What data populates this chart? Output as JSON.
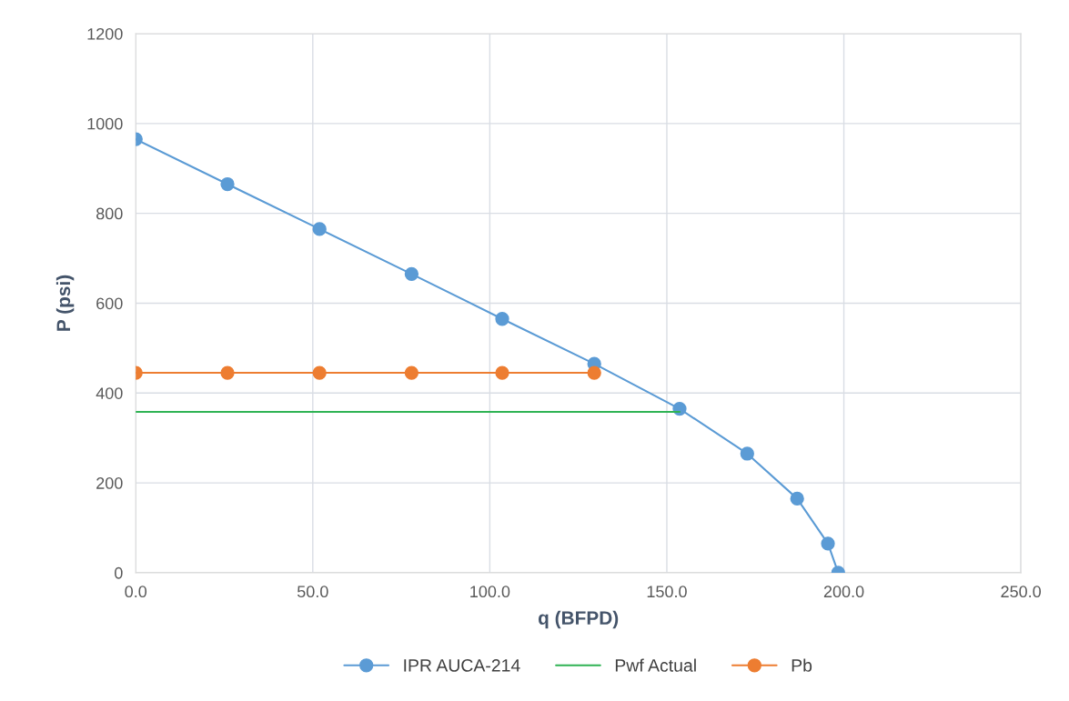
{
  "chart_data": {
    "type": "line",
    "xlabel": "q (BFPD)",
    "ylabel": "P (psi)",
    "xlim": [
      0,
      250
    ],
    "xticks": [
      {
        "value": 0,
        "label": "0.0"
      },
      {
        "value": 50,
        "label": "50.0"
      },
      {
        "value": 100,
        "label": "100.0"
      },
      {
        "value": 150,
        "label": "150.0"
      },
      {
        "value": 200,
        "label": "200.0"
      },
      {
        "value": 250,
        "label": "250.0"
      }
    ],
    "ylim": [
      0,
      1200
    ],
    "yticks": [
      0,
      200,
      400,
      600,
      800,
      1000,
      1200
    ],
    "grid": true,
    "legend": "bottom",
    "series": [
      {
        "name": "IPR AUCA-214",
        "color": "#5b9bd5",
        "marker": "circle",
        "x": [
          0,
          25.9,
          51.9,
          77.9,
          103.5,
          129.5,
          153.6,
          172.7,
          186.8,
          195.5,
          198.4
        ],
        "values": [
          965,
          865,
          765,
          665,
          565,
          465,
          365,
          265,
          165,
          65,
          0
        ]
      },
      {
        "name": "Pwf Actual",
        "color": "#2fb354",
        "marker": "none",
        "x": [
          0,
          153.6
        ],
        "values": [
          358,
          358
        ]
      },
      {
        "name": "Pb",
        "color": "#ed7d31",
        "marker": "circle",
        "x": [
          0,
          25.9,
          51.9,
          77.9,
          103.5,
          129.5
        ],
        "values": [
          445,
          445,
          445,
          445,
          445,
          445
        ]
      }
    ]
  }
}
